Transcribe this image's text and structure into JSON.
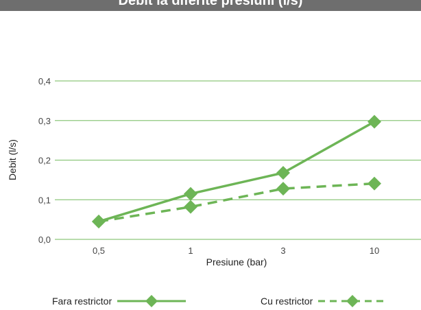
{
  "banner": {
    "title": "Debit la diferite presiuni (l/s)"
  },
  "chart_data": {
    "type": "line",
    "title": "",
    "xlabel": "Presiune (bar)",
    "ylabel": "Debit (l/s)",
    "categories": [
      "0,5",
      "1",
      "3",
      "10"
    ],
    "yticks": [
      "0,0",
      "0,1",
      "0,2",
      "0,3",
      "0,4"
    ],
    "ylim": [
      0,
      0.4
    ],
    "grid": true,
    "legend_position": "bottom",
    "series": [
      {
        "name": "Fara restrictor",
        "values": [
          0.045,
          0.115,
          0.168,
          0.297
        ],
        "style": "solid",
        "marker": "diamond",
        "color": "#6db556"
      },
      {
        "name": "Cu restrictor",
        "values": [
          0.045,
          0.082,
          0.128,
          0.141
        ],
        "style": "dashed",
        "marker": "diamond",
        "color": "#6db556"
      }
    ]
  },
  "colors": {
    "grid": "#8dc77b",
    "banner": "#6e6e6e"
  }
}
